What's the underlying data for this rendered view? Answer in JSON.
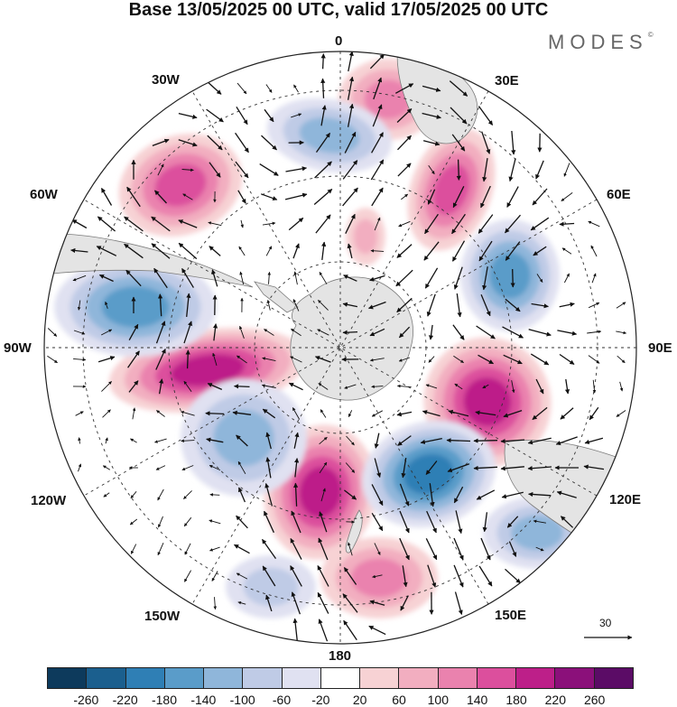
{
  "title": "Base 13/05/2025 00 UTC, valid 17/05/2025 00 UTC",
  "brand": "MODES",
  "brand_mark": "©",
  "longitude_labels": {
    "lon_0": "0",
    "lon_30e": "30E",
    "lon_60e": "60E",
    "lon_90e": "90E",
    "lon_120e": "120E",
    "lon_150e": "150E",
    "lon_180": "180",
    "lon_150w": "150W",
    "lon_120w": "120W",
    "lon_90w": "90W",
    "lon_60w": "60W",
    "lon_30w": "30W"
  },
  "reference_vector": {
    "label": "30"
  },
  "colorbar": {
    "ticks": [
      "-260",
      "-220",
      "-180",
      "-140",
      "-100",
      "-60",
      "-20",
      "20",
      "60",
      "100",
      "140",
      "180",
      "220",
      "260"
    ],
    "colors": [
      "#0d3a5c",
      "#1b5f8e",
      "#2f7fb5",
      "#5a9cc9",
      "#8fb6da",
      "#bfcbe6",
      "#e0e1f1",
      "#ffffff",
      "#f7d2d4",
      "#f2aec0",
      "#ea82ae",
      "#dc4f9d",
      "#bd1f89",
      "#8b107a",
      "#5b0c66"
    ]
  },
  "map_colors": {
    "land": "#e4e4e4",
    "coast": "#7c7c7c",
    "ocean": "#ffffff",
    "grid": "#333333",
    "vector": "#111111"
  }
}
